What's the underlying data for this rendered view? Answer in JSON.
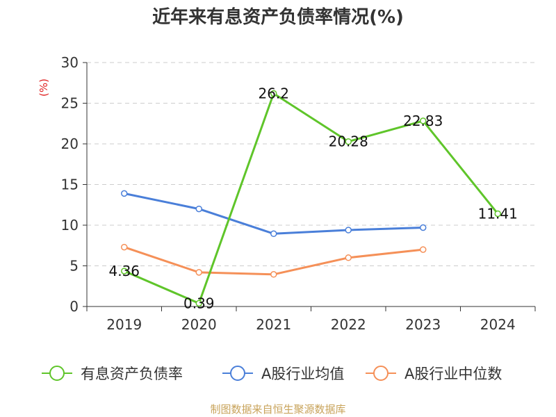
{
  "chart_data": {
    "type": "line",
    "title": "近年来有息资产负债率情况(%)",
    "ylabel": "(%)",
    "xlabel": "",
    "categories": [
      "2019",
      "2020",
      "2021",
      "2022",
      "2023",
      "2024"
    ],
    "ylim": [
      0,
      30
    ],
    "yticks": [
      0,
      5,
      10,
      15,
      20,
      25,
      30
    ],
    "grid": true,
    "legend_position": "bottom",
    "series": [
      {
        "name": "有息资产负债率",
        "color": "#5fc52a",
        "values": [
          4.36,
          0.39,
          26.2,
          20.28,
          22.83,
          11.41
        ],
        "labels": [
          "4.36",
          "0.39",
          "26.2",
          "20.28",
          "22.83",
          "11.41"
        ]
      },
      {
        "name": "A股行业均值",
        "color": "#4a7fd9",
        "values": [
          13.9,
          12.0,
          8.95,
          9.4,
          9.7,
          null
        ]
      },
      {
        "name": "A股行业中位数",
        "color": "#f59058",
        "values": [
          7.3,
          4.2,
          3.95,
          6.0,
          7.0,
          null
        ]
      }
    ]
  },
  "source": "制图数据来自恒生聚源数据库",
  "colors": {
    "title": "#333333",
    "ylabel": "#e02020",
    "axis": "#333333",
    "grid": "#cccccc",
    "source": "#c8a35a"
  }
}
